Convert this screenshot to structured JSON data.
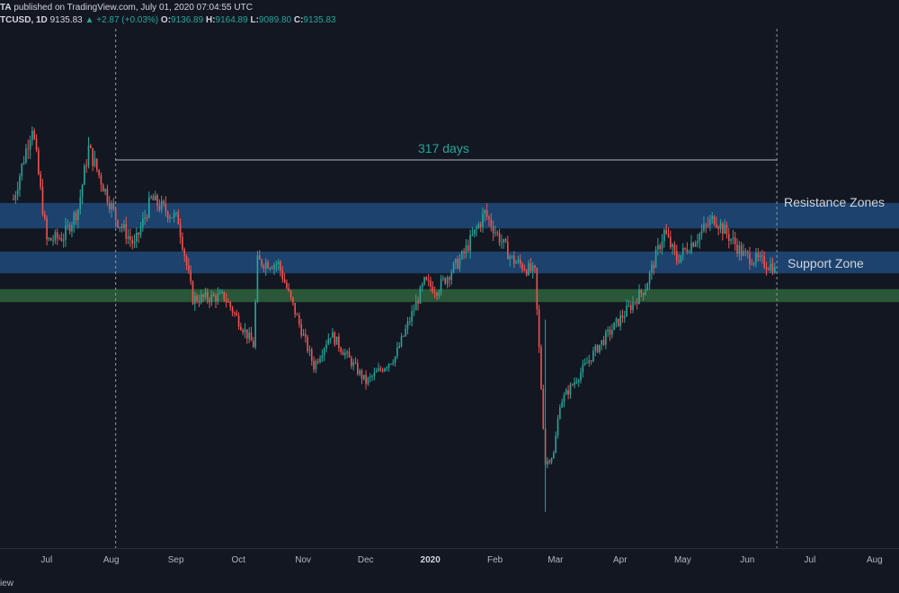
{
  "header": {
    "publisher_suffix": "TA",
    "published_text": " published on TradingView.com, July 01, 2020 07:04:55 UTC",
    "symbol": "TCUSD, 1D",
    "price": "9135.83",
    "change": "+2.87 (+0.03%)",
    "o_label": "O:",
    "o_value": "9136.89",
    "h_label": "H:",
    "h_value": "9164.89",
    "l_label": "L:",
    "l_value": "9089.80",
    "c_label": "C:",
    "c_value": "9135.83"
  },
  "footer": {
    "text": "iew"
  },
  "colors": {
    "background": "#131722",
    "up_candle": "#26a69a",
    "down_candle": "#ef5350",
    "resistance_zone": "#1e4a7a",
    "support_zone": "#2e5e3a"
  },
  "chart_data": {
    "type": "candlestick",
    "symbol": "BTCUSD",
    "interval": "1D",
    "x_axis_labels": [
      "Jul",
      "Aug",
      "Sep",
      "Oct",
      "Nov",
      "Dec",
      "2020",
      "Feb",
      "Mar",
      "Apr",
      "May",
      "Jun",
      "Jul",
      "Aug"
    ],
    "annotations": {
      "range_label": "317 days",
      "range_start": "Aug 19, 2019",
      "range_end": "Jul 01, 2020",
      "resistance_label": "Resistance Zones",
      "support_label": "Support Zone"
    },
    "resistance_zones": [
      [
        9970,
        10520
      ],
      [
        9000,
        9470
      ]
    ],
    "support_zone": [
      8380,
      8660
    ],
    "price_range": [
      3800,
      13500
    ],
    "approx_closes": {
      "dates": [
        "Jul 01 2019",
        "Jul 10 2019",
        "Jul 17 2019",
        "Jul 25 2019",
        "Aug 01 2019",
        "Aug 06 2019",
        "Aug 19 2019",
        "Aug 28 2019",
        "Sep 05 2019",
        "Sep 18 2019",
        "Sep 25 2019",
        "Oct 10 2019",
        "Oct 24 2019",
        "Oct 26 2019",
        "Nov 05 2019",
        "Nov 22 2019",
        "Nov 30 2019",
        "Dec 17 2019",
        "Dec 31 2019",
        "Jan 14 2020",
        "Jan 20 2020",
        "Feb 01 2020",
        "Feb 12 2020",
        "Feb 25 2020",
        "Mar 07 2020",
        "Mar 12 2020",
        "Mar 16 2020",
        "Mar 19 2020",
        "Apr 06 2020",
        "Apr 29 2020",
        "May 08 2020",
        "May 14 2020",
        "Jun 01 2020",
        "Jun 15 2020",
        "Jun 30 2020"
      ],
      "values": [
        10600,
        12200,
        9700,
        9800,
        10400,
        11700,
        10200,
        9600,
        10600,
        10150,
        8450,
        8500,
        7450,
        9250,
        9200,
        7000,
        7700,
        6650,
        7200,
        8800,
        8650,
        9350,
        10300,
        9300,
        9000,
        4900,
        5100,
        6200,
        7400,
        8700,
        9900,
        9300,
        10200,
        9400,
        9135
      ]
    }
  }
}
